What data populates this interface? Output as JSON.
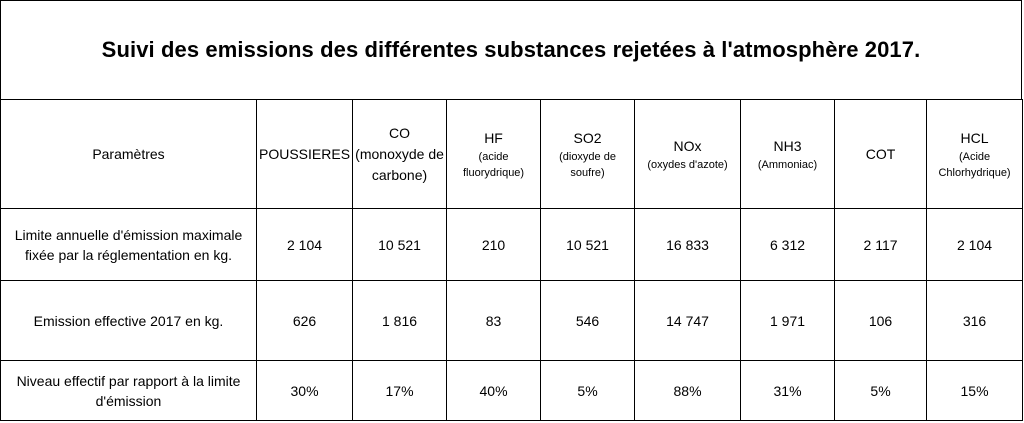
{
  "title": "Suivi des emissions des différentes substances rejetées à l'atmosphère 2017.",
  "header": {
    "param_label": "Paramètres",
    "columns": [
      {
        "main": "POUSSIERES",
        "sub": ""
      },
      {
        "main": "CO",
        "sub": "(monoxyde de carbone)"
      },
      {
        "main": "HF",
        "sub": "(acide fluorydrique)"
      },
      {
        "main": "SO2",
        "sub": "(dioxyde de soufre)"
      },
      {
        "main": "NOx",
        "sub": "(oxydes d'azote)"
      },
      {
        "main": "NH3",
        "sub": "(Ammoniac)"
      },
      {
        "main": "COT",
        "sub": ""
      },
      {
        "main": "HCL",
        "sub": "(Acide Chlorhydrique)"
      }
    ]
  },
  "rows": [
    {
      "label": "Limite annuelle d'émission maximale fixée par la réglementation en kg.",
      "values": [
        "2 104",
        "10 521",
        "210",
        "10 521",
        "16 833",
        "6 312",
        "2 117",
        "2 104"
      ]
    },
    {
      "label": "Emission effective 2017 en kg.",
      "values": [
        "626",
        "1 816",
        "83",
        "546",
        "14 747",
        "1 971",
        "106",
        "316"
      ]
    },
    {
      "label": "Niveau effectif par rapport à la limite d'émission",
      "values": [
        "30%",
        "17%",
        "40%",
        "5%",
        "88%",
        "31%",
        "5%",
        "15%"
      ]
    }
  ]
}
